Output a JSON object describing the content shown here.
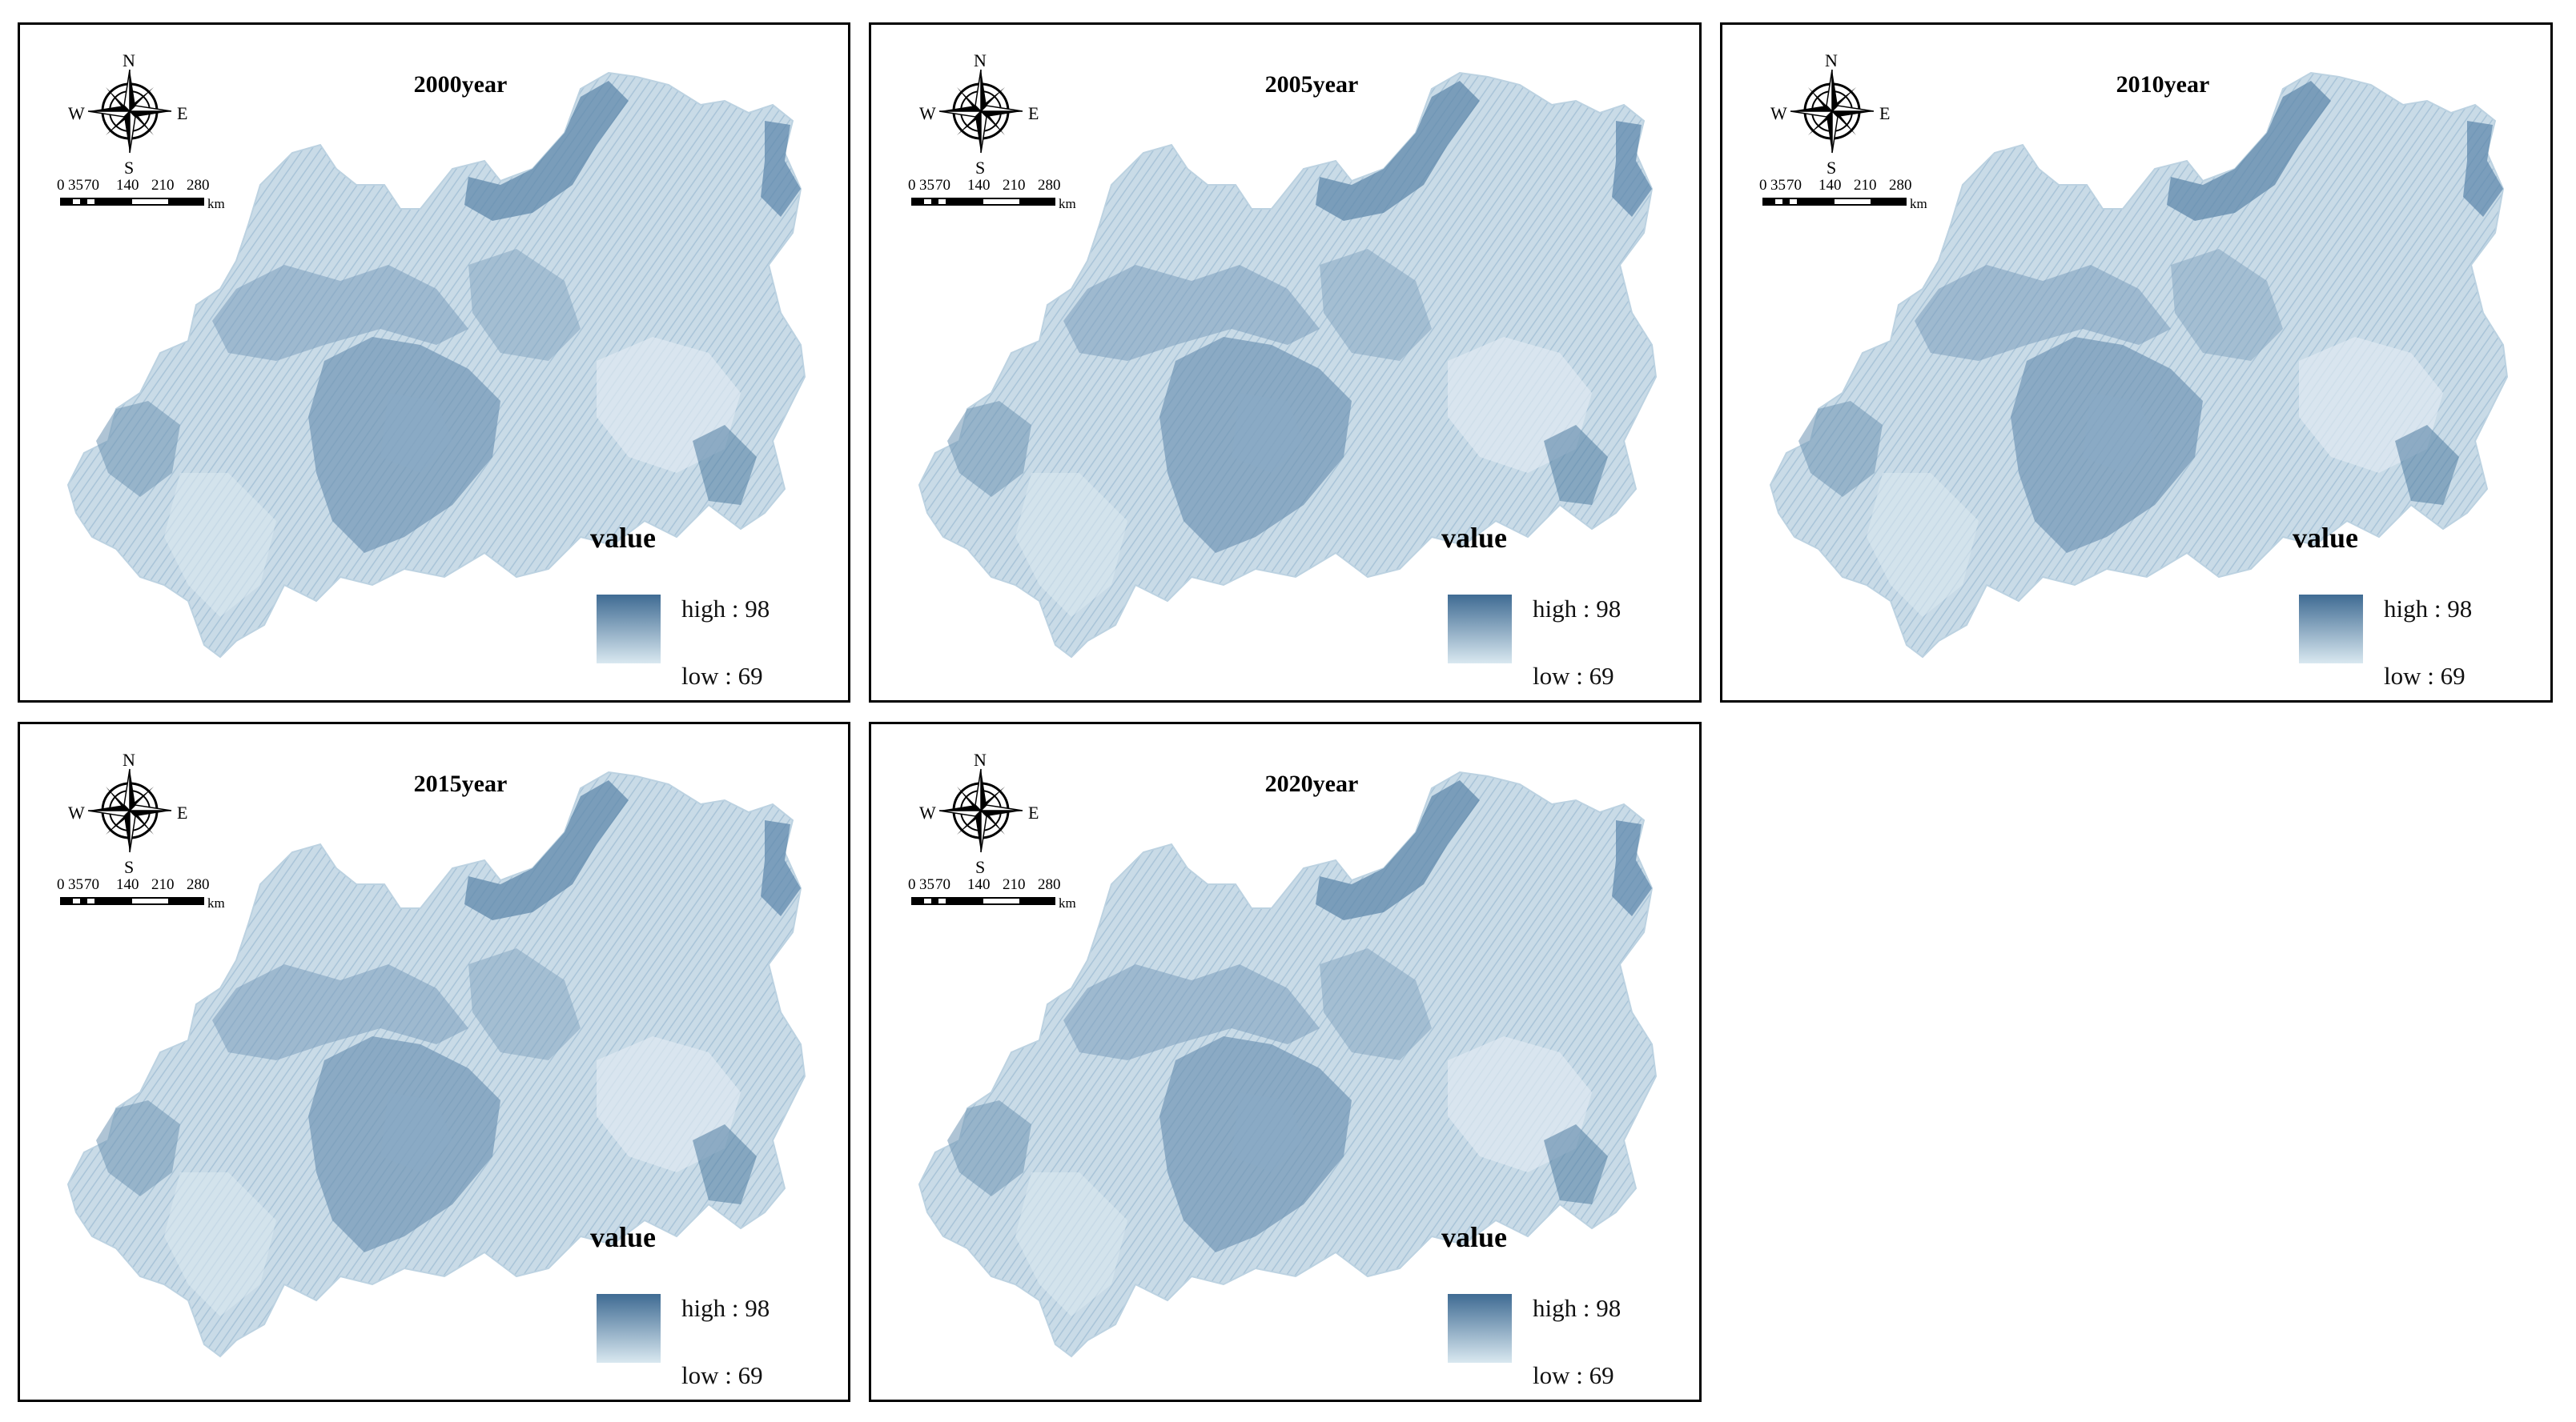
{
  "panels": [
    {
      "year_label": "2000year",
      "legend_title": "value",
      "legend_high": "high : 98",
      "legend_low": "low : 69"
    },
    {
      "year_label": "2005year",
      "legend_title": "value",
      "legend_high": "high : 98",
      "legend_low": "low : 69"
    },
    {
      "year_label": "2010year",
      "legend_title": "value",
      "legend_high": "high : 98",
      "legend_low": "low : 69"
    },
    {
      "year_label": "2015year",
      "legend_title": "value",
      "legend_high": "high : 98",
      "legend_low": "low : 69"
    },
    {
      "year_label": "2020year",
      "legend_title": "value",
      "legend_high": "high : 98",
      "legend_low": "low : 69"
    }
  ],
  "compass": {
    "north": "N",
    "south": "S",
    "east": "E",
    "west": "W"
  },
  "scale_bar": {
    "ticks": [
      "0",
      "35",
      "70",
      "140",
      "210",
      "280"
    ],
    "unit": "km"
  },
  "colors": {
    "high": "#3f6b93",
    "low": "#d9e8f0",
    "frame": "#000000"
  }
}
